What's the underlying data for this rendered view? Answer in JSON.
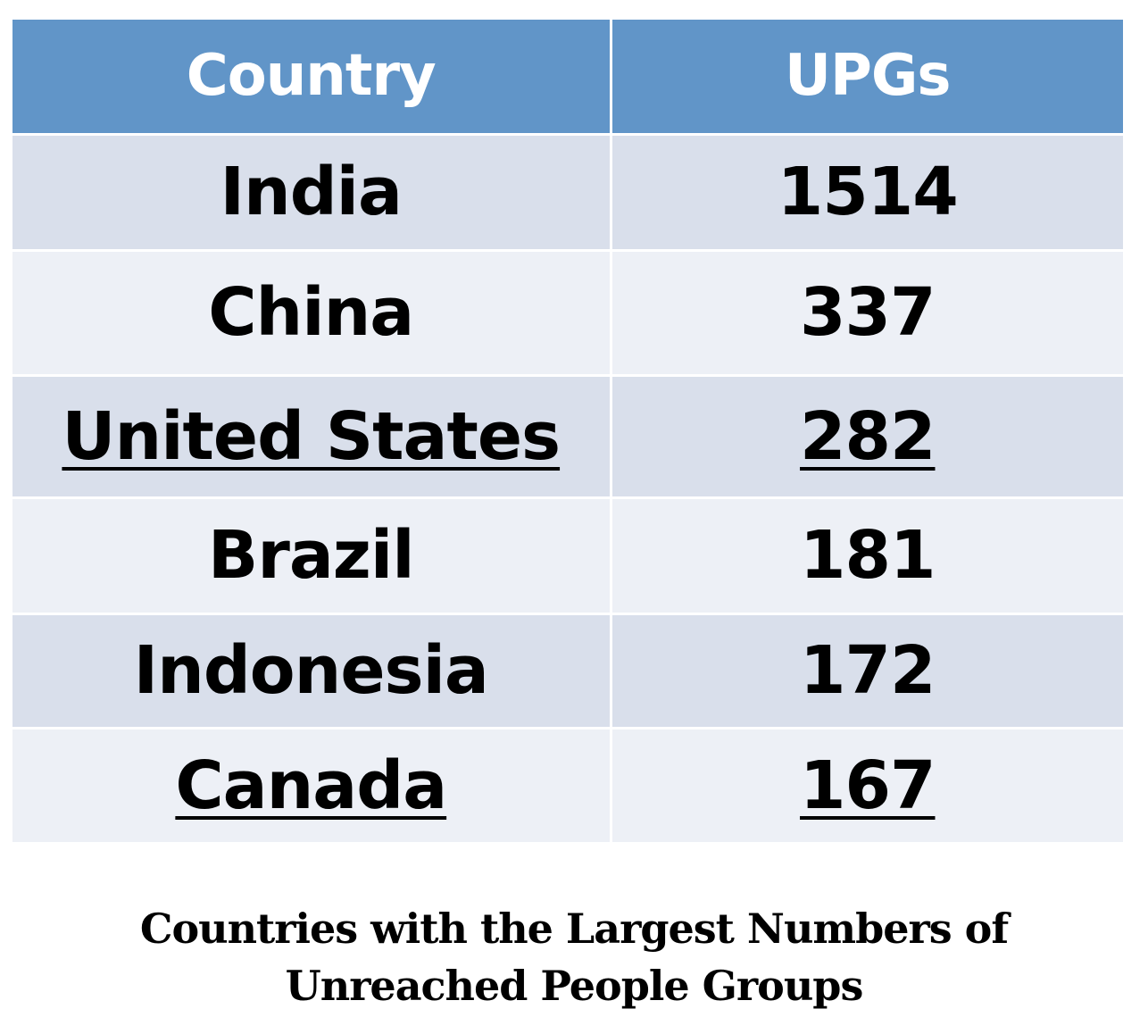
{
  "chart_data": {
    "type": "table",
    "title": "Countries with the Largest Numbers of Unreached People Groups",
    "title_lines": [
      "Countries with the Largest Numbers of",
      "Unreached People Groups"
    ],
    "columns": [
      "Country",
      "UPGs"
    ],
    "rows": [
      {
        "country": "India",
        "upgs": "1514",
        "underlined": false
      },
      {
        "country": "China",
        "upgs": "337",
        "underlined": false
      },
      {
        "country": "United States",
        "upgs": "282",
        "underlined": true
      },
      {
        "country": "Brazil",
        "upgs": "181",
        "underlined": false
      },
      {
        "country": "Indonesia",
        "upgs": "172",
        "underlined": false
      },
      {
        "country": "Canada",
        "upgs": "167",
        "underlined": true
      }
    ],
    "colors": {
      "header": "#6195c8",
      "row_dark": "#d9dfeb",
      "row_light": "#edf0f6"
    }
  }
}
